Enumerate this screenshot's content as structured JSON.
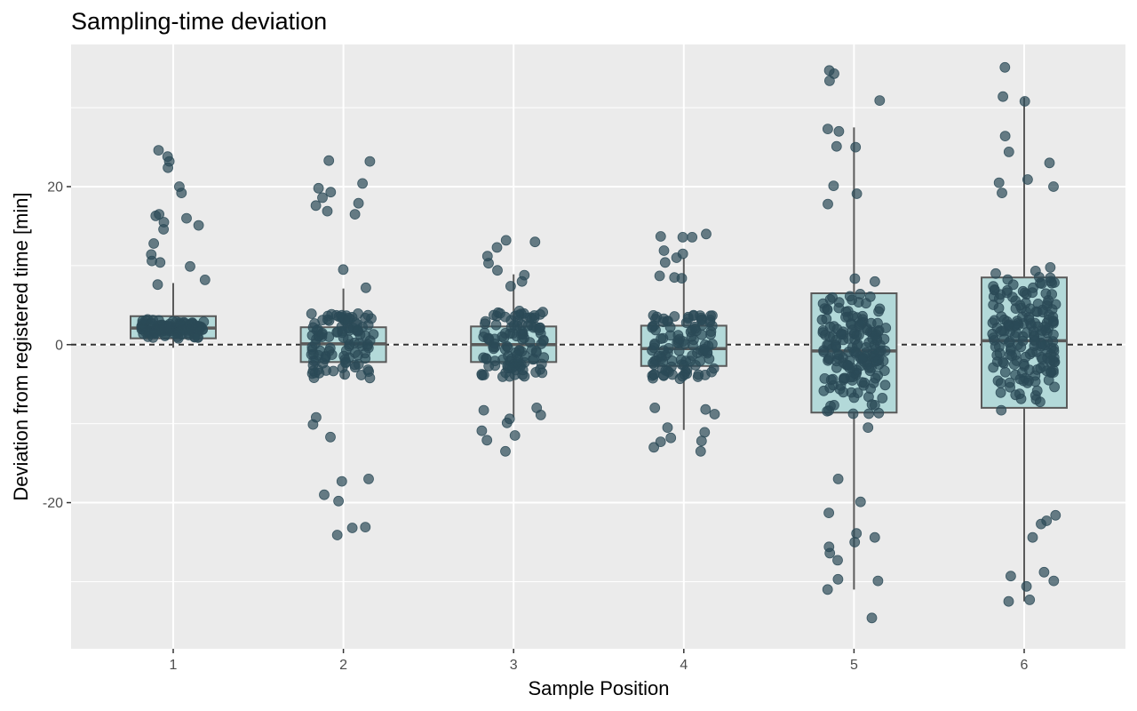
{
  "chart_data": {
    "type": "boxplot",
    "title": "Sampling-time deviation",
    "xlabel": "Sample Position",
    "ylabel": "Deviation from registered time [min]",
    "categories": [
      "1",
      "2",
      "3",
      "4",
      "5",
      "6"
    ],
    "ylim": [
      -38.5,
      38
    ],
    "yticks": [
      -20,
      0,
      20
    ],
    "yticks_labels": [
      "-20",
      "0",
      "20"
    ],
    "reference_line": {
      "y": 0,
      "style": "dashed"
    },
    "grid": true,
    "colors": {
      "panel_bg": "#ebebeb",
      "grid": "#ffffff",
      "box_fill": "#b3d9d9",
      "box_stroke": "#5a5a5a",
      "point": "#2b4a57",
      "ref_line": "#333333"
    },
    "boxes": [
      {
        "category": "1",
        "whisker_low": -0.4,
        "q1": 0.8,
        "median": 2.1,
        "q3": 3.6,
        "whisker_high": 7.8
      },
      {
        "category": "2",
        "whisker_low": -4.3,
        "q1": -2.2,
        "median": 0.1,
        "q3": 2.2,
        "whisker_high": 7.1
      },
      {
        "category": "3",
        "whisker_low": -9.2,
        "q1": -2.2,
        "median": 0.0,
        "q3": 2.3,
        "whisker_high": 8.9
      },
      {
        "category": "4",
        "whisker_low": -10.8,
        "q1": -2.7,
        "median": -0.5,
        "q3": 2.4,
        "whisker_high": 11.0
      },
      {
        "category": "5",
        "whisker_low": -31.0,
        "q1": -8.6,
        "median": -0.8,
        "q3": 6.5,
        "whisker_high": 27.5
      },
      {
        "category": "6",
        "whisker_low": -32.5,
        "q1": -8.0,
        "median": 0.5,
        "q3": 8.5,
        "whisker_high": 31.3
      }
    ],
    "points_summary": [
      {
        "category": "1",
        "n": 130,
        "core_range": [
          -0.4,
          4.0
        ],
        "outliers": [
          8.2,
          9.9,
          10.4,
          10.6,
          11.4,
          12.8,
          14.6,
          15.1,
          15.5,
          16.0,
          16.3,
          16.5,
          19.2,
          20.0,
          22.4,
          23.2,
          23.8,
          24.6,
          7.6
        ]
      },
      {
        "category": "2",
        "n": 130,
        "core_range": [
          -4.3,
          4.0
        ],
        "outliers": [
          7.2,
          9.5,
          16.5,
          16.9,
          17.6,
          17.9,
          18.6,
          19.3,
          19.8,
          20.4,
          23.2,
          23.3,
          -9.2,
          -10.1,
          -11.7,
          -17.0,
          -17.3,
          -19.0,
          -19.8,
          -23.2,
          -23.1,
          -24.1
        ]
      },
      {
        "category": "3",
        "n": 130,
        "core_range": [
          -4.2,
          4.3
        ],
        "outliers": [
          7.4,
          8.0,
          8.8,
          9.4,
          10.3,
          11.2,
          12.3,
          13.0,
          13.2,
          -8.0,
          -8.3,
          -8.9,
          -9.4,
          -9.9,
          -10.9,
          -11.5,
          -12.1,
          -13.5
        ]
      },
      {
        "category": "4",
        "n": 130,
        "core_range": [
          -4.5,
          4.0
        ],
        "outliers": [
          8.4,
          8.5,
          8.7,
          10.4,
          11.0,
          11.5,
          11.9,
          13.6,
          13.6,
          13.7,
          14.0,
          -8.0,
          -8.2,
          -8.8,
          -10.5,
          -11.1,
          -11.8,
          -12.2,
          -12.3,
          -13.0,
          -13.5
        ]
      },
      {
        "category": "5",
        "n": 200,
        "core_range": [
          -14.0,
          14.0
        ],
        "outliers": [
          17.8,
          19.1,
          20.1,
          25.0,
          25.1,
          27.0,
          27.3,
          30.9,
          33.4,
          34.3,
          34.7,
          -17.0,
          -19.9,
          -21.3,
          -23.9,
          -24.4,
          -25.0,
          -25.6,
          -26.4,
          -27.3,
          -29.7,
          -29.9,
          -31.0,
          -34.6
        ]
      },
      {
        "category": "6",
        "n": 200,
        "core_range": [
          -14.0,
          14.0
        ],
        "outliers": [
          19.2,
          20.0,
          20.5,
          20.9,
          23.0,
          24.4,
          26.4,
          30.8,
          31.4,
          35.1,
          -21.6,
          -22.3,
          -22.7,
          -24.4,
          -28.8,
          -29.3,
          -29.9,
          -30.6,
          -32.3,
          -32.5
        ]
      }
    ]
  }
}
